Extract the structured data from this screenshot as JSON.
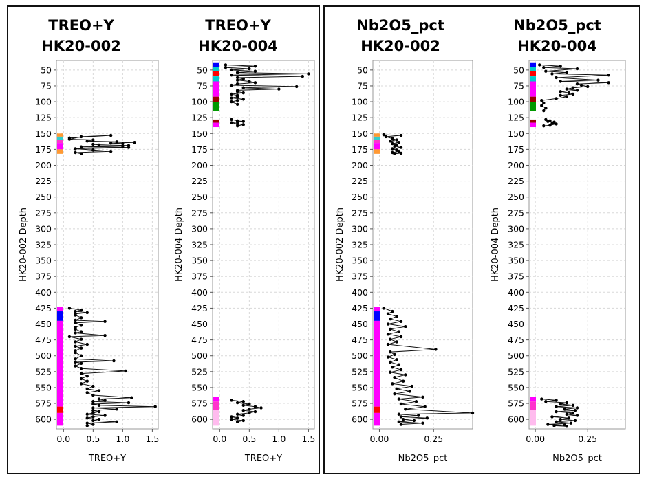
{
  "chart_data": [
    {
      "type": "line",
      "title": [
        "TREO+Y",
        "HK20-002"
      ],
      "xlabel": "TREO+Y",
      "ylabel": "HK20-002 Depth",
      "y_inverted": true,
      "ylim": [
        35,
        615
      ],
      "xlim": [
        -0.12,
        1.6
      ],
      "yticks": [
        50,
        75,
        100,
        125,
        150,
        175,
        200,
        225,
        250,
        275,
        300,
        325,
        350,
        375,
        400,
        425,
        450,
        475,
        500,
        525,
        550,
        575,
        600
      ],
      "xticks": [
        0.0,
        0.5,
        1.0,
        1.5
      ],
      "xtick_labels": [
        "0.0",
        "0.5",
        "1.0",
        "1.5"
      ],
      "grid": true,
      "strip": [
        {
          "from": 150,
          "to": 155,
          "color": "#ff9933"
        },
        {
          "from": 155,
          "to": 160,
          "color": "#33cccc"
        },
        {
          "from": 160,
          "to": 165,
          "color": "#ff33cc"
        },
        {
          "from": 165,
          "to": 175,
          "color": "#ff00ff"
        },
        {
          "from": 175,
          "to": 182,
          "color": "#ff9933"
        },
        {
          "from": 423,
          "to": 430,
          "color": "#ff00ff"
        },
        {
          "from": 430,
          "to": 445,
          "color": "#0000ff"
        },
        {
          "from": 445,
          "to": 580,
          "color": "#ff00ff"
        },
        {
          "from": 580,
          "to": 590,
          "color": "#ff0000"
        },
        {
          "from": 590,
          "to": 610,
          "color": "#ff00ff"
        }
      ],
      "series": [
        {
          "x": [
            0.1,
            0.8,
            0.3,
            0.1,
            0.5,
            0.4,
            0.9,
            1.2,
            0.8,
            1.0,
            0.5,
            0.6,
            1.1,
            1.0,
            0.3,
            1.1,
            0.2,
            0.5,
            0.8,
            0.2,
            0.3
          ],
          "y": [
            157,
            153,
            155,
            159,
            160,
            162,
            163,
            164,
            165,
            166,
            167,
            168,
            169,
            170,
            171,
            172,
            174,
            176,
            178,
            180,
            182
          ]
        },
        {
          "x": [
            0.1,
            0.3,
            0.2,
            0.4,
            0.2,
            0.2,
            0.3,
            0.2,
            0.7,
            0.2,
            0.3,
            0.2,
            0.2,
            0.3,
            0.2,
            0.7,
            0.1,
            0.3,
            0.2,
            0.4,
            0.2,
            0.3,
            0.2,
            0.2,
            0.3,
            0.2,
            0.85,
            0.2,
            0.3,
            0.2,
            0.3,
            1.05,
            0.3,
            0.4,
            0.3,
            0.4,
            0.3,
            0.5,
            0.4,
            0.6,
            0.4,
            0.5,
            1.15,
            0.6,
            0.7,
            0.5,
            1.1,
            0.5,
            0.6,
            1.55,
            0.5,
            0.9,
            0.5,
            0.6,
            0.5,
            0.4,
            0.7,
            0.5,
            0.4,
            0.6,
            0.5,
            0.9,
            0.4,
            0.5,
            0.4
          ],
          "y": [
            425,
            428,
            430,
            432,
            434,
            436,
            440,
            444,
            446,
            448,
            452,
            455,
            458,
            462,
            464,
            468,
            470,
            474,
            478,
            482,
            485,
            488,
            492,
            495,
            500,
            505,
            508,
            510,
            512,
            516,
            520,
            524,
            528,
            532,
            536,
            540,
            544,
            548,
            552,
            555,
            558,
            562,
            566,
            568,
            570,
            572,
            574,
            576,
            578,
            580,
            582,
            584,
            586,
            588,
            590,
            592,
            594,
            596,
            598,
            600,
            602,
            604,
            606,
            608,
            610
          ]
        }
      ]
    },
    {
      "type": "line",
      "title": [
        "TREO+Y",
        "HK20-004"
      ],
      "xlabel": "TREO+Y",
      "ylabel": "HK20-004 Depth",
      "y_inverted": true,
      "ylim": [
        35,
        615
      ],
      "xlim": [
        -0.12,
        1.6
      ],
      "yticks": [
        50,
        75,
        100,
        125,
        150,
        175,
        200,
        225,
        250,
        275,
        300,
        325,
        350,
        375,
        400,
        425,
        450,
        475,
        500,
        525,
        550,
        575,
        600
      ],
      "xticks": [
        0.0,
        0.5,
        1.0,
        1.5
      ],
      "xtick_labels": [
        "0.0",
        "0.5",
        "1.0",
        "1.5"
      ],
      "grid": true,
      "strip": [
        {
          "from": 38,
          "to": 45,
          "color": "#0000ff"
        },
        {
          "from": 45,
          "to": 52,
          "color": "#00cccc"
        },
        {
          "from": 52,
          "to": 60,
          "color": "#ff0000"
        },
        {
          "from": 60,
          "to": 68,
          "color": "#00cccc"
        },
        {
          "from": 68,
          "to": 92,
          "color": "#ff00ff"
        },
        {
          "from": 92,
          "to": 100,
          "color": "#990000"
        },
        {
          "from": 100,
          "to": 115,
          "color": "#009900"
        },
        {
          "from": 115,
          "to": 128,
          "color": "#ffffff"
        },
        {
          "from": 128,
          "to": 133,
          "color": "#990000"
        },
        {
          "from": 133,
          "to": 140,
          "color": "#ff00ff"
        },
        {
          "from": 565,
          "to": 572,
          "color": "#ff00ff"
        },
        {
          "from": 572,
          "to": 585,
          "color": "#ff33cc"
        },
        {
          "from": 585,
          "to": 610,
          "color": "#ffbbee"
        }
      ],
      "series": [
        {
          "x": [
            0.1,
            0.6,
            0.1,
            0.5,
            0.2,
            0.6,
            0.3,
            1.5,
            0.2,
            1.4,
            0.3,
            0.4,
            0.3,
            0.5,
            0.6,
            0.3,
            0.2,
            1.3,
            0.4,
            1.0,
            0.3,
            0.3,
            0.4,
            0.2,
            0.3,
            0.3,
            0.2,
            0.4,
            0.3,
            0.2,
            0.3
          ],
          "y": [
            42,
            44,
            46,
            48,
            50,
            52,
            54,
            56,
            58,
            60,
            62,
            64,
            66,
            68,
            70,
            72,
            74,
            76,
            78,
            80,
            82,
            84,
            86,
            88,
            90,
            92,
            94,
            96,
            98,
            100,
            104
          ]
        },
        {
          "x": [
            0.2,
            0.3,
            0.4,
            0.3,
            0.2,
            0.3,
            0.4,
            0.3
          ],
          "y": [
            128,
            130,
            131,
            132,
            133,
            135,
            136,
            138
          ]
        },
        {
          "x": [
            0.2,
            0.4,
            0.3,
            0.5,
            0.4,
            0.6,
            0.7,
            0.5,
            0.4,
            0.6,
            0.5,
            0.3,
            0.4,
            0.2,
            0.3,
            0.2,
            0.4,
            0.3
          ],
          "y": [
            570,
            572,
            574,
            576,
            578,
            580,
            582,
            584,
            586,
            588,
            590,
            592,
            594,
            596,
            598,
            600,
            602,
            604
          ]
        }
      ]
    },
    {
      "type": "line",
      "title": [
        "Nb2O5_pct",
        "HK20-002"
      ],
      "xlabel": "Nb2O5_pct",
      "ylabel": "HK20-002 Depth",
      "y_inverted": true,
      "ylim": [
        35,
        615
      ],
      "xlim": [
        -0.03,
        0.43
      ],
      "yticks": [
        50,
        75,
        100,
        125,
        150,
        175,
        200,
        225,
        250,
        275,
        300,
        325,
        350,
        375,
        400,
        425,
        450,
        475,
        500,
        525,
        550,
        575,
        600
      ],
      "xticks": [
        0.0,
        0.25
      ],
      "xtick_labels": [
        "0.00",
        "0.25"
      ],
      "grid": true,
      "strip": [
        {
          "from": 150,
          "to": 155,
          "color": "#ff9933"
        },
        {
          "from": 155,
          "to": 160,
          "color": "#33cccc"
        },
        {
          "from": 160,
          "to": 165,
          "color": "#ff33cc"
        },
        {
          "from": 165,
          "to": 175,
          "color": "#ff00ff"
        },
        {
          "from": 175,
          "to": 182,
          "color": "#ff9933"
        },
        {
          "from": 423,
          "to": 430,
          "color": "#ff00ff"
        },
        {
          "from": 430,
          "to": 445,
          "color": "#0000ff"
        },
        {
          "from": 445,
          "to": 580,
          "color": "#ff00ff"
        },
        {
          "from": 580,
          "to": 590,
          "color": "#ff0000"
        },
        {
          "from": 590,
          "to": 610,
          "color": "#ff00ff"
        }
      ],
      "series": [
        {
          "x": [
            0.02,
            0.1,
            0.03,
            0.06,
            0.08,
            0.05,
            0.09,
            0.06,
            0.08,
            0.07,
            0.1,
            0.06,
            0.08,
            0.09,
            0.06,
            0.1,
            0.07
          ],
          "y": [
            152,
            153,
            155,
            158,
            160,
            162,
            164,
            166,
            168,
            170,
            172,
            174,
            176,
            178,
            180,
            181,
            182
          ]
        },
        {
          "x": [
            0.02,
            0.06,
            0.04,
            0.08,
            0.05,
            0.1,
            0.04,
            0.12,
            0.05,
            0.09,
            0.04,
            0.1,
            0.05,
            0.08,
            0.04,
            0.26,
            0.05,
            0.07,
            0.04,
            0.08,
            0.05,
            0.09,
            0.06,
            0.1,
            0.05,
            0.12,
            0.07,
            0.11,
            0.06,
            0.15,
            0.08,
            0.14,
            0.07,
            0.2,
            0.09,
            0.17,
            0.1,
            0.21,
            0.12,
            0.43,
            0.09,
            0.18,
            0.1,
            0.22,
            0.11,
            0.16,
            0.09,
            0.2,
            0.1
          ],
          "y": [
            425,
            430,
            434,
            438,
            442,
            446,
            450,
            454,
            458,
            462,
            466,
            470,
            474,
            478,
            482,
            490,
            494,
            498,
            502,
            506,
            510,
            514,
            518,
            522,
            526,
            530,
            534,
            540,
            544,
            548,
            552,
            556,
            560,
            565,
            568,
            572,
            576,
            580,
            584,
            590,
            592,
            594,
            596,
            598,
            600,
            602,
            604,
            606,
            608
          ]
        }
      ]
    },
    {
      "type": "line",
      "title": [
        "Nb2O5_pct",
        "HK20-004"
      ],
      "xlabel": "Nb2O5_pct",
      "ylabel": "HK20-004 Depth",
      "y_inverted": true,
      "ylim": [
        35,
        615
      ],
      "xlim": [
        -0.03,
        0.43
      ],
      "yticks": [
        50,
        75,
        100,
        125,
        150,
        175,
        200,
        225,
        250,
        275,
        300,
        325,
        350,
        375,
        400,
        425,
        450,
        475,
        500,
        525,
        550,
        575,
        600
      ],
      "xticks": [
        0.0,
        0.25
      ],
      "xtick_labels": [
        "0.00",
        "0.25"
      ],
      "grid": true,
      "strip": [
        {
          "from": 38,
          "to": 45,
          "color": "#0000ff"
        },
        {
          "from": 45,
          "to": 52,
          "color": "#00cccc"
        },
        {
          "from": 52,
          "to": 60,
          "color": "#ff0000"
        },
        {
          "from": 60,
          "to": 68,
          "color": "#00cccc"
        },
        {
          "from": 68,
          "to": 92,
          "color": "#ff00ff"
        },
        {
          "from": 92,
          "to": 100,
          "color": "#990000"
        },
        {
          "from": 100,
          "to": 115,
          "color": "#009900"
        },
        {
          "from": 115,
          "to": 128,
          "color": "#ffffff"
        },
        {
          "from": 128,
          "to": 133,
          "color": "#990000"
        },
        {
          "from": 133,
          "to": 140,
          "color": "#ff00ff"
        },
        {
          "from": 565,
          "to": 572,
          "color": "#ff00ff"
        },
        {
          "from": 572,
          "to": 585,
          "color": "#ff33cc"
        },
        {
          "from": 585,
          "to": 610,
          "color": "#ffbbee"
        }
      ],
      "series": [
        {
          "x": [
            0.02,
            0.12,
            0.04,
            0.2,
            0.05,
            0.15,
            0.08,
            0.35,
            0.1,
            0.3,
            0.12,
            0.35,
            0.2,
            0.22,
            0.25,
            0.18,
            0.15,
            0.2,
            0.12,
            0.16,
            0.18,
            0.12,
            0.15,
            0.1,
            0.03,
            0.04,
            0.03,
            0.05,
            0.04
          ],
          "y": [
            42,
            44,
            46,
            48,
            52,
            54,
            56,
            58,
            62,
            66,
            68,
            70,
            72,
            74,
            76,
            78,
            80,
            82,
            84,
            86,
            88,
            90,
            92,
            95,
            98,
            102,
            106,
            110,
            114
          ]
        },
        {
          "x": [
            0.05,
            0.07,
            0.06,
            0.09,
            0.08,
            0.1,
            0.07,
            0.04
          ],
          "y": [
            128,
            130,
            131,
            132,
            134,
            135,
            137,
            138
          ]
        },
        {
          "x": [
            0.03,
            0.1,
            0.05,
            0.15,
            0.12,
            0.18,
            0.1,
            0.2,
            0.14,
            0.19,
            0.1,
            0.18,
            0.15,
            0.2,
            0.08,
            0.16,
            0.12,
            0.19,
            0.1,
            0.17,
            0.06,
            0.14,
            0.09,
            0.15
          ],
          "y": [
            568,
            570,
            572,
            574,
            576,
            578,
            580,
            582,
            584,
            586,
            588,
            590,
            592,
            594,
            596,
            598,
            600,
            602,
            604,
            606,
            608,
            609,
            610,
            611
          ]
        }
      ]
    }
  ]
}
